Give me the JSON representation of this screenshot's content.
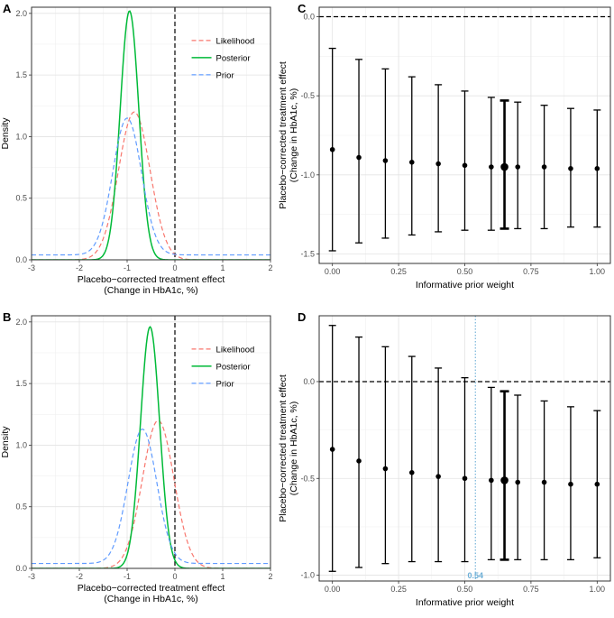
{
  "chart_data": [
    {
      "panel": "A",
      "type": "line",
      "xlabel": [
        "Placebo−corrected treatment effect",
        "(Change in HbA1c, %)"
      ],
      "ylabel": "Density",
      "xlim": [
        -3,
        2
      ],
      "ylim": [
        0,
        2.05
      ],
      "xticks": [
        "-3",
        "-2",
        "-1",
        "0",
        "1",
        "2"
      ],
      "yticks": [
        "0.0",
        "0.5",
        "1.0",
        "1.5",
        "2.0"
      ],
      "vline": 0,
      "legend": [
        "Likelihood",
        "Posterior",
        "Prior"
      ],
      "series": [
        {
          "name": "Likelihood",
          "color": "#F8766D",
          "dash": true,
          "mean": -0.85,
          "sd": 0.33,
          "peak": 1.2,
          "tail": 0
        },
        {
          "name": "Posterior",
          "color": "#00BA38",
          "dash": false,
          "mean": -0.95,
          "sd": 0.195,
          "peak": 2.02,
          "tail": 0
        },
        {
          "name": "Prior",
          "color": "#619CFF",
          "dash": true,
          "mean": -1.0,
          "sd": 0.3,
          "peak": 1.15,
          "tail": 0.04
        }
      ]
    },
    {
      "panel": "B",
      "type": "line",
      "xlabel": [
        "Placebo−corrected treatment effect",
        "(Change in HbA1c, %)"
      ],
      "ylabel": "Density",
      "xlim": [
        -3,
        2
      ],
      "ylim": [
        0,
        2.05
      ],
      "xticks": [
        "-3",
        "-2",
        "-1",
        "0",
        "1",
        "2"
      ],
      "yticks": [
        "0.0",
        "0.5",
        "1.0",
        "1.5",
        "2.0"
      ],
      "vline": 0,
      "legend": [
        "Likelihood",
        "Posterior",
        "Prior"
      ],
      "series": [
        {
          "name": "Likelihood",
          "color": "#F8766D",
          "dash": true,
          "mean": -0.35,
          "sd": 0.33,
          "peak": 1.2,
          "tail": 0
        },
        {
          "name": "Posterior",
          "color": "#00BA38",
          "dash": false,
          "mean": -0.52,
          "sd": 0.2,
          "peak": 1.96,
          "tail": 0
        },
        {
          "name": "Prior",
          "color": "#619CFF",
          "dash": true,
          "mean": -0.68,
          "sd": 0.3,
          "peak": 1.13,
          "tail": 0.04
        }
      ]
    },
    {
      "panel": "C",
      "type": "errorbar",
      "xlabel": "Informative prior weight",
      "ylabel": [
        "Placebo−corrected treatment effect",
        "(Change in HbA1c, %)"
      ],
      "xlim": [
        -0.05,
        1.05
      ],
      "ylim": [
        -1.56,
        0.06
      ],
      "xticks": [
        "0.00",
        "0.25",
        "0.50",
        "0.75",
        "1.00"
      ],
      "yticks": [
        "-1.5",
        "-1.0",
        "-0.5",
        "0.0"
      ],
      "hline": 0,
      "points": [
        {
          "x": 0.0,
          "y": -0.84,
          "lo": -1.48,
          "hi": -0.2,
          "bold": false
        },
        {
          "x": 0.1,
          "y": -0.89,
          "lo": -1.43,
          "hi": -0.27,
          "bold": false
        },
        {
          "x": 0.2,
          "y": -0.91,
          "lo": -1.4,
          "hi": -0.33,
          "bold": false
        },
        {
          "x": 0.3,
          "y": -0.92,
          "lo": -1.38,
          "hi": -0.38,
          "bold": false
        },
        {
          "x": 0.4,
          "y": -0.93,
          "lo": -1.36,
          "hi": -0.43,
          "bold": false
        },
        {
          "x": 0.5,
          "y": -0.94,
          "lo": -1.35,
          "hi": -0.47,
          "bold": false
        },
        {
          "x": 0.6,
          "y": -0.95,
          "lo": -1.35,
          "hi": -0.51,
          "bold": false
        },
        {
          "x": 0.65,
          "y": -0.95,
          "lo": -1.34,
          "hi": -0.53,
          "bold": true
        },
        {
          "x": 0.7,
          "y": -0.95,
          "lo": -1.34,
          "hi": -0.54,
          "bold": false
        },
        {
          "x": 0.8,
          "y": -0.95,
          "lo": -1.34,
          "hi": -0.56,
          "bold": false
        },
        {
          "x": 0.9,
          "y": -0.96,
          "lo": -1.33,
          "hi": -0.58,
          "bold": false
        },
        {
          "x": 1.0,
          "y": -0.96,
          "lo": -1.33,
          "hi": -0.59,
          "bold": false
        }
      ]
    },
    {
      "panel": "D",
      "type": "errorbar",
      "xlabel": "Informative prior weight",
      "ylabel": [
        "Placebo−corrected treatment effect",
        "(Change in HbA1c, %)"
      ],
      "xlim": [
        -0.05,
        1.05
      ],
      "ylim": [
        -1.03,
        0.34
      ],
      "xticks": [
        "0.00",
        "0.25",
        "0.50",
        "0.75",
        "1.00"
      ],
      "yticks": [
        "-1.0",
        "-0.5",
        "0.0"
      ],
      "hline": 0,
      "vline": 0.54,
      "vline_label": "0.54",
      "vline_color": "#6BAED6",
      "points": [
        {
          "x": 0.0,
          "y": -0.35,
          "lo": -0.98,
          "hi": 0.29,
          "bold": false
        },
        {
          "x": 0.1,
          "y": -0.41,
          "lo": -0.96,
          "hi": 0.23,
          "bold": false
        },
        {
          "x": 0.2,
          "y": -0.45,
          "lo": -0.94,
          "hi": 0.18,
          "bold": false
        },
        {
          "x": 0.3,
          "y": -0.47,
          "lo": -0.93,
          "hi": 0.13,
          "bold": false
        },
        {
          "x": 0.4,
          "y": -0.49,
          "lo": -0.93,
          "hi": 0.07,
          "bold": false
        },
        {
          "x": 0.5,
          "y": -0.5,
          "lo": -0.93,
          "hi": 0.02,
          "bold": false
        },
        {
          "x": 0.6,
          "y": -0.51,
          "lo": -0.92,
          "hi": -0.03,
          "bold": false
        },
        {
          "x": 0.65,
          "y": -0.51,
          "lo": -0.92,
          "hi": -0.05,
          "bold": true
        },
        {
          "x": 0.7,
          "y": -0.52,
          "lo": -0.92,
          "hi": -0.07,
          "bold": false
        },
        {
          "x": 0.8,
          "y": -0.52,
          "lo": -0.92,
          "hi": -0.1,
          "bold": false
        },
        {
          "x": 0.9,
          "y": -0.53,
          "lo": -0.92,
          "hi": -0.13,
          "bold": false
        },
        {
          "x": 1.0,
          "y": -0.53,
          "lo": -0.91,
          "hi": -0.15,
          "bold": false
        }
      ]
    }
  ]
}
